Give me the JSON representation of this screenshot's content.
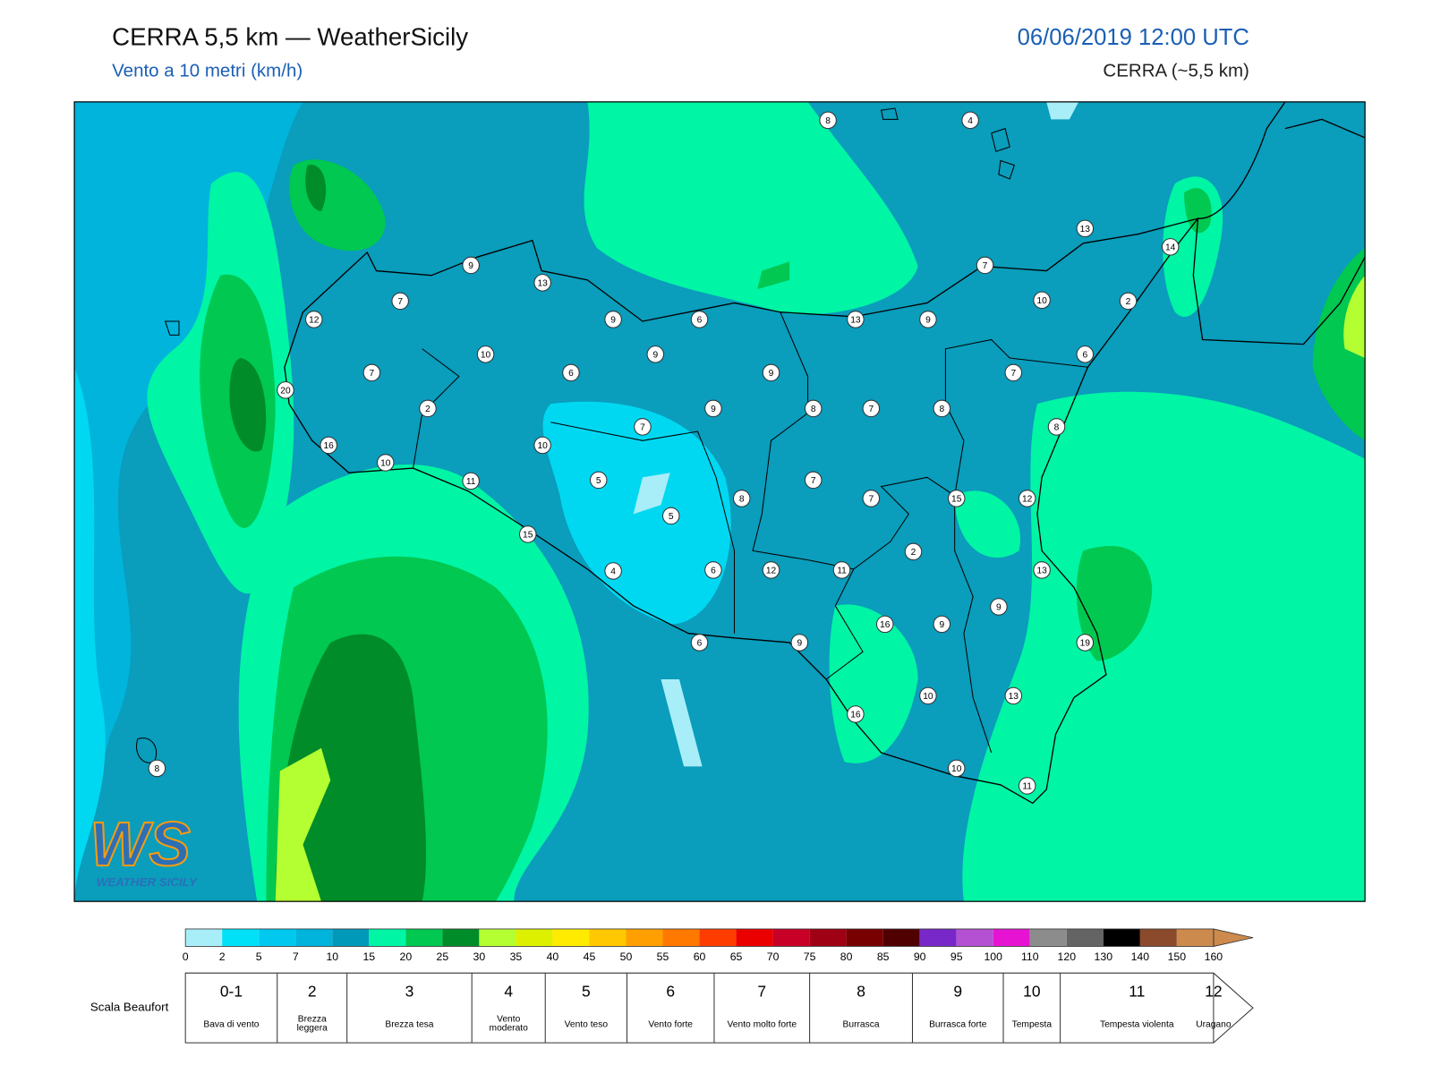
{
  "header": {
    "title": "CERRA 5,5 km — WeatherSicily",
    "subtitle": "Vento a 10 metri (km/h)",
    "date": "06/06/2019 12:00 UTC",
    "model": "CERRA (~5,5 km)"
  },
  "logo": {
    "mark": "WS",
    "text": "WEATHER SICILY"
  },
  "stations": [
    8,
    4,
    13,
    14,
    9,
    13,
    7,
    7,
    12,
    9,
    6,
    13,
    9,
    10,
    2,
    10,
    9,
    6,
    7,
    6,
    9,
    7,
    20,
    2,
    9,
    8,
    7,
    8,
    7,
    8,
    16,
    10,
    10,
    11,
    5,
    7,
    8,
    7,
    15,
    12,
    5,
    15,
    2,
    4,
    6,
    12,
    11,
    13,
    9,
    16,
    9,
    6,
    9,
    19,
    10,
    13,
    16,
    8,
    10,
    11
  ],
  "colorbar": {
    "ticks": [
      0,
      2,
      5,
      7,
      10,
      15,
      20,
      25,
      30,
      35,
      40,
      45,
      50,
      55,
      60,
      65,
      70,
      75,
      80,
      85,
      90,
      95,
      100,
      110,
      120,
      130,
      140,
      150,
      160
    ],
    "colors": [
      "#a8eef8",
      "#00e1f8",
      "#00c8ee",
      "#00b4dc",
      "#0099b9",
      "#00f5a5",
      "#00c850",
      "#008c28",
      "#b4ff32",
      "#dcf000",
      "#ffeb00",
      "#ffc800",
      "#ffa000",
      "#ff7800",
      "#ff3c00",
      "#eb0000",
      "#c80028",
      "#a00014",
      "#780000",
      "#500000",
      "#7828c8",
      "#b450d2",
      "#e614d2",
      "#8c8c8c",
      "#646464",
      "#000000",
      "#8b4a2b",
      "#cd8a4d"
    ]
  },
  "beaufort": {
    "label": "Scala Beaufort",
    "levels": [
      {
        "force": "0-1",
        "desc": "Bava di vento"
      },
      {
        "force": 2,
        "desc": "Brezza leggera"
      },
      {
        "force": 3,
        "desc": "Brezza tesa"
      },
      {
        "force": 4,
        "desc": "Vento moderato"
      },
      {
        "force": 5,
        "desc": "Vento teso"
      },
      {
        "force": 6,
        "desc": "Vento forte"
      },
      {
        "force": 7,
        "desc": "Vento molto forte"
      },
      {
        "force": 8,
        "desc": "Burrasca"
      },
      {
        "force": 9,
        "desc": "Burrasca forte"
      },
      {
        "force": 10,
        "desc": "Tempesta"
      },
      {
        "force": 11,
        "desc": "Tempesta violenta"
      },
      {
        "force": 12,
        "desc": "Uragano"
      }
    ]
  }
}
